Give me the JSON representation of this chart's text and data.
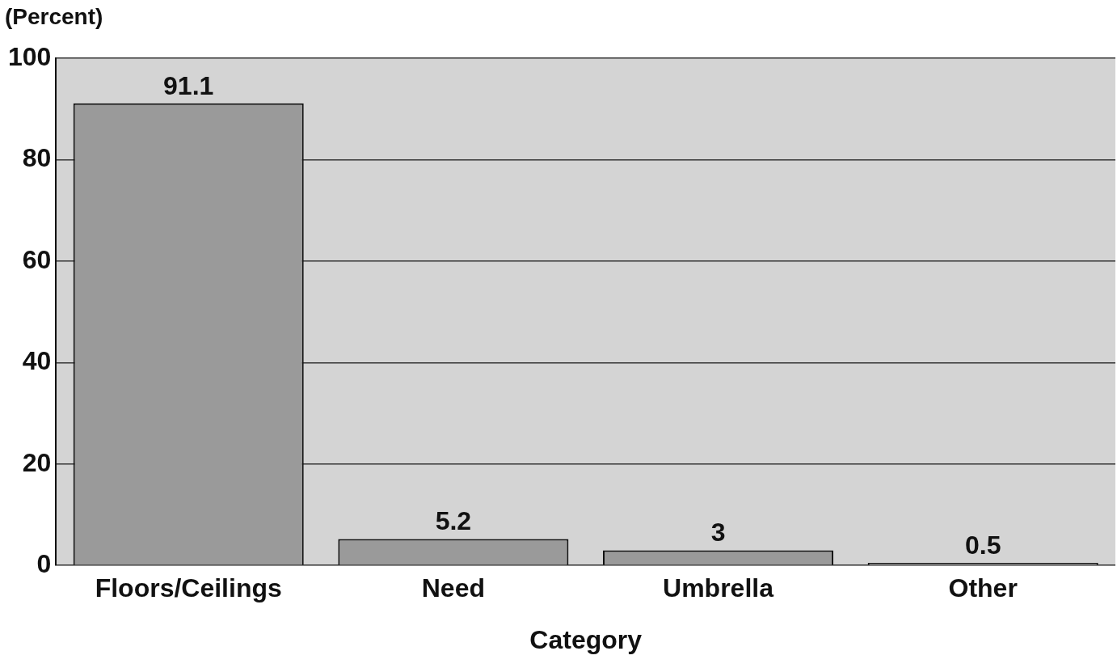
{
  "chart_data": {
    "type": "bar",
    "xlabel": "Category",
    "ylabel": "(Percent)",
    "categories": [
      "Floors/Ceilings",
      "Need",
      "Umbrella",
      "Other"
    ],
    "values": [
      91.1,
      5.2,
      3,
      0.5
    ],
    "color": "#9a9a9a",
    "ylim": [
      0,
      100
    ],
    "yticks": [
      0,
      20,
      40,
      60,
      80,
      100
    ],
    "grid": "y",
    "data_labels": true,
    "legend": false
  }
}
